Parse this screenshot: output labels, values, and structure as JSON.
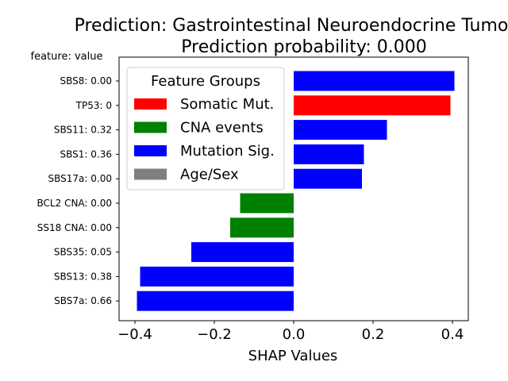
{
  "chart_data": {
    "type": "bar",
    "orientation": "horizontal",
    "title_line1": "Prediction: Gastrointestinal Neuroendocrine Tumo",
    "title_line2": "Prediction probability: 0.000",
    "xlabel": "SHAP Values",
    "ylabel_header": "feature: value",
    "xlim": [
      -0.44,
      0.44
    ],
    "xticks": [
      -0.4,
      -0.2,
      0.0,
      0.2,
      0.4
    ],
    "xtick_labels": [
      "−0.4",
      "−0.2",
      "0.0",
      "0.2",
      "0.4"
    ],
    "grid": false,
    "legend": {
      "title": "Feature Groups",
      "placement": "top-left",
      "entries": [
        {
          "label": "Somatic Mut.",
          "color": "#ff0000"
        },
        {
          "label": "CNA events",
          "color": "#008000"
        },
        {
          "label": "Mutation Sig.",
          "color": "#0000ff"
        },
        {
          "label": "Age/Sex",
          "color": "#808080"
        }
      ]
    },
    "bars": [
      {
        "label": "SBS8: 0.00",
        "value": 0.405,
        "group_color": "#0000ff"
      },
      {
        "label": "TP53: 0",
        "value": 0.395,
        "group_color": "#ff0000"
      },
      {
        "label": "SBS11: 0.32",
        "value": 0.235,
        "group_color": "#0000ff"
      },
      {
        "label": "SBS1: 0.36",
        "value": 0.177,
        "group_color": "#0000ff"
      },
      {
        "label": "SBS17a: 0.00",
        "value": 0.172,
        "group_color": "#0000ff"
      },
      {
        "label": "BCL2 CNA: 0.00",
        "value": -0.135,
        "group_color": "#008000"
      },
      {
        "label": "SS18 CNA: 0.00",
        "value": -0.16,
        "group_color": "#008000"
      },
      {
        "label": "SBS35: 0.05",
        "value": -0.258,
        "group_color": "#0000ff"
      },
      {
        "label": "SBS13: 0.38",
        "value": -0.387,
        "group_color": "#0000ff"
      },
      {
        "label": "SBS7a: 0.66",
        "value": -0.395,
        "group_color": "#0000ff"
      }
    ]
  }
}
